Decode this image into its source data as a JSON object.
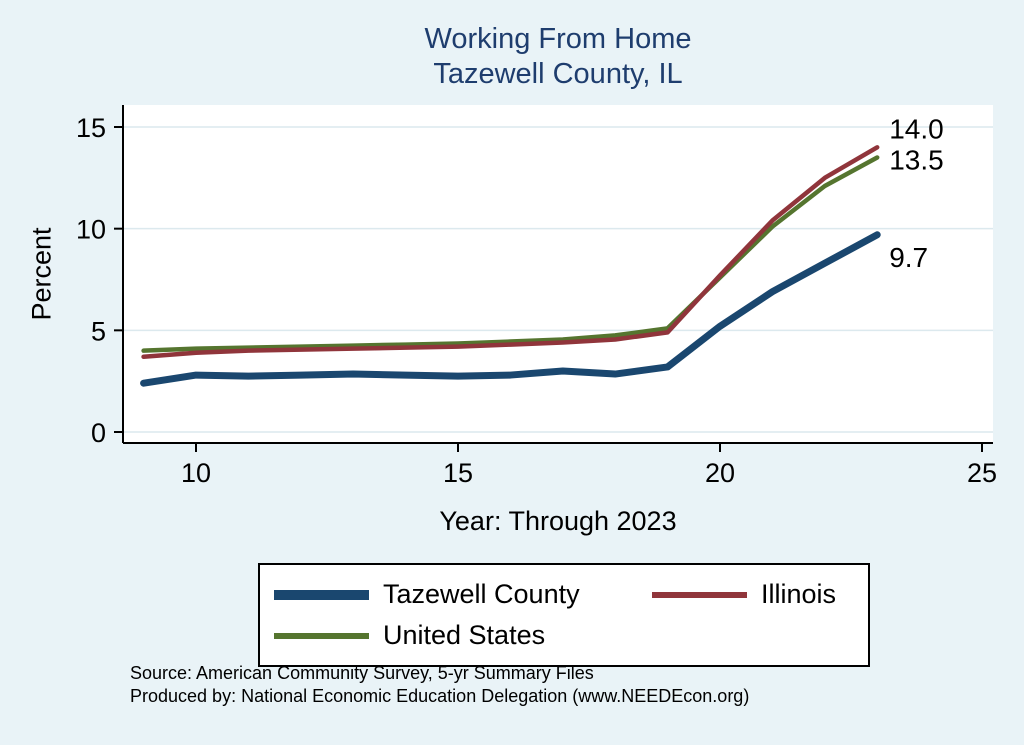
{
  "title": {
    "line1": "Working From Home",
    "line2": "Tazewell County, IL"
  },
  "axes": {
    "y_label": "Percent",
    "x_label": "Year: Through 2023"
  },
  "legend": {
    "items": [
      {
        "label": "Tazewell County",
        "color": "#1a476f"
      },
      {
        "label": "Illinois",
        "color": "#90353b"
      },
      {
        "label": "United States",
        "color": "#55752f"
      }
    ]
  },
  "footer": {
    "source": "Source: American Community Survey, 5-yr Summary Files",
    "produced_by": "Produced by: National Economic Education Delegation (www.NEEDEcon.org)"
  },
  "colors": {
    "background": "#e9f3f7",
    "plot_background": "#ffffff",
    "gridline": "#dce9ee",
    "axis": "#000000",
    "title": "#1e3d6e"
  },
  "chart_data": {
    "type": "line",
    "title": "Working From Home — Tazewell County, IL",
    "xlabel": "Year: Through 2023",
    "ylabel": "Percent",
    "xlim": [
      8.6,
      25.2
    ],
    "ylim": [
      -0.5,
      16.1
    ],
    "xticks": [
      10,
      15,
      20,
      25
    ],
    "yticks": [
      0,
      5,
      10,
      15
    ],
    "grid": "horizontal",
    "legend_position": "bottom",
    "x": [
      9,
      10,
      11,
      12,
      13,
      14,
      15,
      16,
      17,
      18,
      19,
      20,
      21,
      22,
      23
    ],
    "series": [
      {
        "name": "Tazewell County",
        "color": "#1a476f",
        "width": 7,
        "values": [
          2.4,
          2.8,
          2.75,
          2.8,
          2.85,
          2.8,
          2.75,
          2.8,
          3.0,
          2.85,
          3.2,
          5.2,
          6.9,
          8.3,
          9.7
        ],
        "end_label": "9.7",
        "end_label_offset": 32
      },
      {
        "name": "Illinois",
        "color": "#90353b",
        "width": 4.5,
        "values": [
          3.7,
          3.9,
          4.0,
          4.05,
          4.1,
          4.15,
          4.2,
          4.3,
          4.4,
          4.55,
          4.9,
          7.7,
          10.4,
          12.5,
          14.0
        ],
        "end_label": "14.0",
        "end_label_offset": -9
      },
      {
        "name": "United States",
        "color": "#55752f",
        "width": 4.5,
        "values": [
          4.0,
          4.1,
          4.15,
          4.2,
          4.25,
          4.3,
          4.35,
          4.45,
          4.55,
          4.75,
          5.1,
          7.6,
          10.1,
          12.1,
          13.5
        ],
        "end_label": "13.5",
        "end_label_offset": 12
      }
    ]
  }
}
